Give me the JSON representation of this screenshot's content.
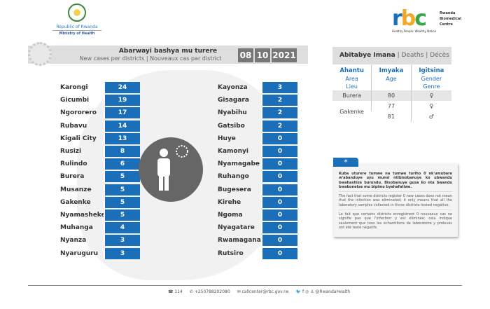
{
  "header": {
    "moh_line1": "Republic of Rwanda",
    "moh_line2": "Ministry of Health",
    "rbc_logo": "rbc",
    "rbc_name": [
      "Rwanda",
      "Biomedical",
      "Centre"
    ],
    "rbc_tagline": "Healthy People, Wealthy Nation"
  },
  "title": {
    "kinyarwanda": "Abarwayi bashya mu turere",
    "subtitle": "New cases per districts  |  Nouveaux cas par district",
    "date": [
      "08",
      "10",
      "2021"
    ]
  },
  "districts_left": [
    {
      "name": "Karongi",
      "cases": "24"
    },
    {
      "name": "Gicumbi",
      "cases": "19"
    },
    {
      "name": "Ngororero",
      "cases": "17"
    },
    {
      "name": "Rubavu",
      "cases": "14"
    },
    {
      "name": "Kigali City",
      "cases": "13"
    },
    {
      "name": "Rusizi",
      "cases": "8"
    },
    {
      "name": "Rulindo",
      "cases": "6"
    },
    {
      "name": "Burera",
      "cases": "5"
    },
    {
      "name": "Musanze",
      "cases": "5"
    },
    {
      "name": "Gakenke",
      "cases": "5"
    },
    {
      "name": "Nyamasheke",
      "cases": "5"
    },
    {
      "name": "Muhanga",
      "cases": "4"
    },
    {
      "name": "Nyanza",
      "cases": "3"
    },
    {
      "name": "Nyaruguru",
      "cases": "3"
    }
  ],
  "districts_right": [
    {
      "name": "Kayonza",
      "cases": "3"
    },
    {
      "name": "Gisagara",
      "cases": "2"
    },
    {
      "name": "Nyabihu",
      "cases": "2"
    },
    {
      "name": "Gatsibo",
      "cases": "2"
    },
    {
      "name": "Huye",
      "cases": "0"
    },
    {
      "name": "Kamonyi",
      "cases": "0"
    },
    {
      "name": "Nyamagabe",
      "cases": "0"
    },
    {
      "name": "Ruhango",
      "cases": "0"
    },
    {
      "name": "Bugesera",
      "cases": "0"
    },
    {
      "name": "Kirehe",
      "cases": "0"
    },
    {
      "name": "Ngoma",
      "cases": "0"
    },
    {
      "name": "Nyagatare",
      "cases": "0"
    },
    {
      "name": "Rwamagana",
      "cases": "0"
    },
    {
      "name": "Rutsiro",
      "cases": "0"
    }
  ],
  "deaths": {
    "title": "Abitabye Imana",
    "en": "Deaths",
    "fr": "Décès",
    "sep": "|",
    "headers": [
      {
        "rw": "Ahantu",
        "en": "Area",
        "fr": "Lieu"
      },
      {
        "rw": "Imyaka",
        "en": "Age",
        "fr": ""
      },
      {
        "rw": "Igitsina",
        "en": "Gender",
        "fr": "Genre"
      }
    ],
    "rows": [
      {
        "area": "Burera",
        "age": "80",
        "gender": "♀"
      },
      {
        "area": "Gakenke",
        "age": "77",
        "gender": "♀"
      },
      {
        "area": "",
        "age": "81",
        "gender": "♂"
      }
    ]
  },
  "note": {
    "marker": "*",
    "rw": "Kuba uturere tumwe na tumwe turiho 0 nk'umubare w'abanduye uyu munsi ntibisobanuye ko ubwandu bwahashize burundu. Bisobanuye gusa ko nta bwandu bwabonetse mu bipimo byahafatiwe.",
    "en": "The fact that some districts register 0 new cases does not mean that the infection was eliminated; it only means that all the laboratory samples collected in those districts tested negative.",
    "fr": "Le fait que certains districts enregistrent 0 nouveaux cas ne signifie pas que l'infection y est éliminée; cela indique seulement que tous les échantillons de laboratoire y prélevés ont été testé négatifs."
  },
  "footer": {
    "hotline": "114",
    "phone": "+250788202080",
    "email": "callcenter@rbc.gov.rw",
    "social": "@RwandaHealth"
  },
  "colors": {
    "accent": "#1b6fb8",
    "date_bg": "#777777"
  }
}
